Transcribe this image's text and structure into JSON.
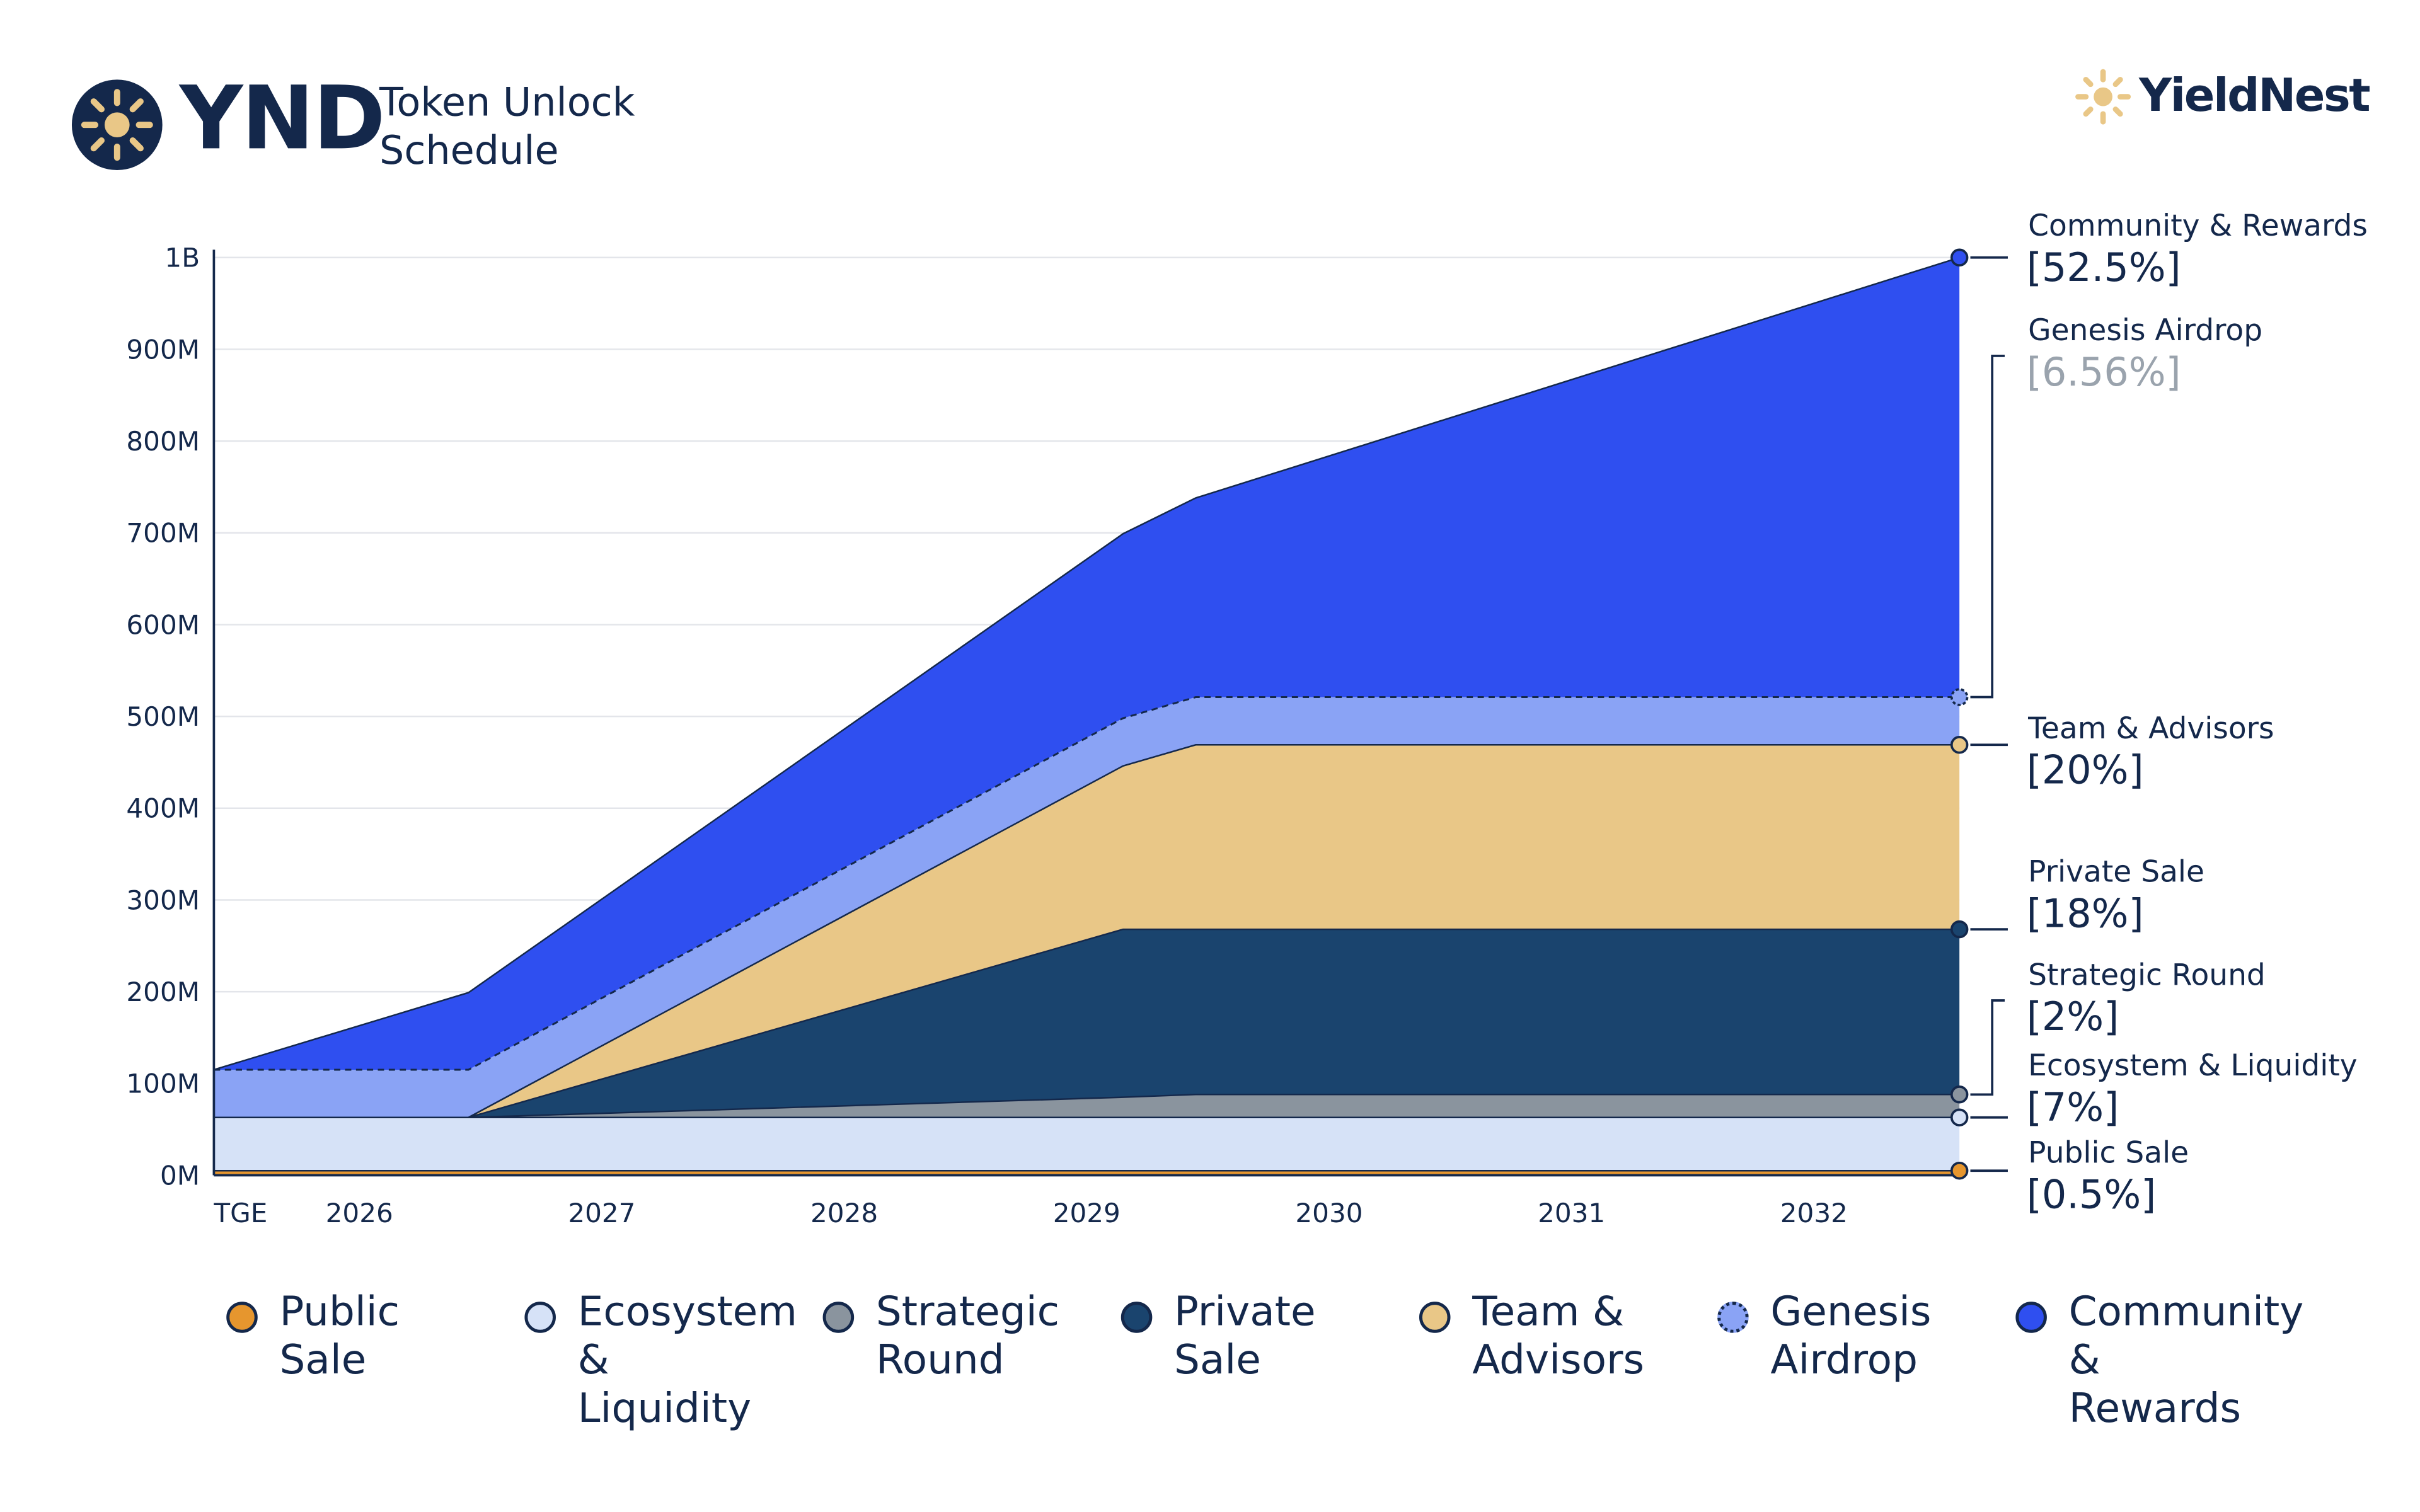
{
  "chart_data": {
    "type": "stacked-area",
    "ticker": "YND",
    "title": "Token Unlock Schedule",
    "brand": "YieldNest",
    "x": [
      2025.4,
      2026.45,
      2029.15,
      2029.45,
      2032.6
    ],
    "xlim": [
      2025.4,
      2032.6
    ],
    "xticks": [
      {
        "value": 2025.4,
        "label": "TGE"
      },
      2026,
      2027,
      2028,
      2029,
      2030,
      2031,
      2032
    ],
    "ylim": [
      0,
      1000
    ],
    "yticks": [
      {
        "value": 0,
        "label": "0M"
      },
      {
        "value": 100,
        "label": "100M"
      },
      {
        "value": 200,
        "label": "200M"
      },
      {
        "value": 300,
        "label": "300M"
      },
      {
        "value": 400,
        "label": "400M"
      },
      {
        "value": 500,
        "label": "500M"
      },
      {
        "value": 600,
        "label": "600M"
      },
      {
        "value": 700,
        "label": "700M"
      },
      {
        "value": 800,
        "label": "800M"
      },
      {
        "value": 900,
        "label": "900M"
      },
      {
        "value": 1000,
        "label": "1B"
      }
    ],
    "grid": true,
    "series": [
      {
        "name": "Public Sale",
        "color": "#e6962e",
        "values": [
          5,
          5,
          5,
          5,
          5
        ],
        "share_label": "[0.5%]"
      },
      {
        "name": "Ecosystem & Liquidity",
        "color": "#d6e2f7",
        "values": [
          58,
          58,
          58,
          58,
          58
        ],
        "share_label": "[7%]"
      },
      {
        "name": "Strategic Round",
        "color": "#8a949e",
        "values": [
          0,
          0,
          22,
          25,
          25
        ],
        "share_label": "[2%]"
      },
      {
        "name": "Private Sale",
        "color": "#1a446e",
        "values": [
          0,
          0,
          183,
          180,
          180
        ],
        "share_label": "[18%]"
      },
      {
        "name": "Team & Advisors",
        "color": "#e9c787",
        "values": [
          0,
          0,
          178,
          201,
          201
        ],
        "share_label": "[20%]"
      },
      {
        "name": "Genesis Airdrop",
        "color": "#8aa3f5",
        "values": [
          52,
          52,
          52,
          52,
          52
        ],
        "share_label": "[6.56%]",
        "dashed": true
      },
      {
        "name": "Community & Rewards",
        "color": "#2f4ff0",
        "values": [
          0,
          84,
          201,
          217,
          479
        ],
        "share_label": "[52.5%]"
      }
    ]
  }
}
